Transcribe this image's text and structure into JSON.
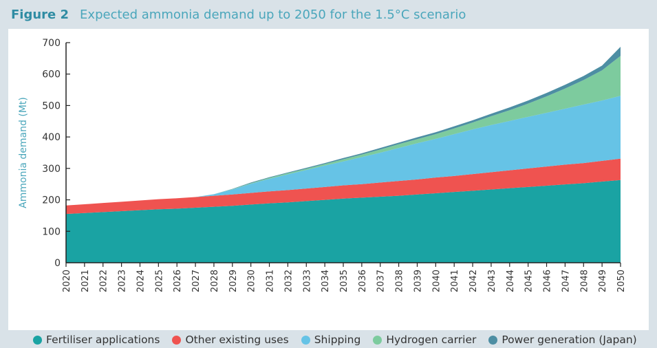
{
  "header": {
    "figure_label": "Figure 2",
    "title": "Expected ammonia demand up to 2050 for the 1.5°C scenario"
  },
  "colors": {
    "background": "#d9e2e8",
    "fertiliser": "#1aa3a3",
    "other": "#ef5350",
    "shipping": "#66c3e6",
    "hydrogen": "#7dcb9e",
    "power": "#4d8ea3",
    "axis_label": "#4aa6bb"
  },
  "chart_data": {
    "type": "area",
    "stacked": true,
    "ylabel": "Ammonia demand (Mt)",
    "ylim": [
      0,
      700
    ],
    "yticks": [
      0,
      100,
      200,
      300,
      400,
      500,
      600,
      700
    ],
    "x": [
      2020,
      2021,
      2022,
      2023,
      2024,
      2025,
      2026,
      2027,
      2028,
      2029,
      2030,
      2031,
      2032,
      2033,
      2034,
      2035,
      2036,
      2037,
      2038,
      2039,
      2040,
      2041,
      2042,
      2043,
      2044,
      2045,
      2046,
      2047,
      2048,
      2049,
      2050
    ],
    "x_tick_labels": [
      "2020",
      "2021",
      "2022",
      "2023",
      "2024",
      "2025",
      "2026",
      "2027",
      "2028",
      "2029",
      "2030",
      "2031",
      "2032",
      "2033",
      "2034",
      "2035",
      "2036",
      "2037",
      "2038",
      "2039",
      "2040",
      "2041",
      "2042",
      "2043",
      "2044",
      "2045",
      "2046",
      "2047",
      "2048",
      "2049",
      "2050"
    ],
    "series": [
      {
        "name": "Fertiliser applications",
        "color": "#1aa3a3",
        "values": [
          155,
          158,
          161,
          164,
          167,
          170,
          172,
          175,
          178,
          181,
          185,
          189,
          192,
          196,
          200,
          204,
          207,
          210,
          213,
          217,
          221,
          225,
          229,
          233,
          237,
          241,
          245,
          249,
          253,
          258,
          263
        ]
      },
      {
        "name": "Other existing uses",
        "color": "#ef5350",
        "values": [
          27,
          28,
          29,
          30,
          31,
          32,
          33,
          34,
          35,
          36,
          37,
          38,
          39,
          40,
          41,
          42,
          43,
          45,
          47,
          48,
          50,
          51,
          53,
          55,
          57,
          59,
          61,
          63,
          64,
          66,
          68
        ]
      },
      {
        "name": "Shipping",
        "color": "#66c3e6",
        "values": [
          0,
          0,
          0,
          0,
          0,
          0,
          0,
          0,
          5,
          16,
          29,
          40,
          50,
          59,
          68,
          76,
          86,
          95,
          105,
          115,
          123,
          133,
          142,
          150,
          157,
          164,
          171,
          178,
          186,
          192,
          200
        ]
      },
      {
        "name": "Hydrogen carrier",
        "color": "#7dcb9e",
        "values": [
          0,
          0,
          0,
          0,
          0,
          0,
          0,
          0,
          0,
          1,
          2,
          3,
          4,
          4,
          5,
          7,
          8,
          10,
          12,
          13,
          15,
          18,
          22,
          28,
          34,
          42,
          52,
          64,
          78,
          96,
          127
        ]
      },
      {
        "name": "Power generation (Japan)",
        "color": "#4d8ea3",
        "values": [
          0,
          0,
          0,
          0,
          0,
          0,
          0,
          0,
          0,
          1,
          2,
          2,
          2,
          3,
          3,
          4,
          4,
          5,
          5,
          6,
          6,
          7,
          7,
          8,
          9,
          10,
          11,
          12,
          13,
          15,
          29
        ]
      }
    ]
  },
  "legend": {
    "items": [
      {
        "label": "Fertiliser applications",
        "color": "#1aa3a3"
      },
      {
        "label": "Other existing uses",
        "color": "#ef5350"
      },
      {
        "label": "Shipping",
        "color": "#66c3e6"
      },
      {
        "label": "Hydrogen carrier",
        "color": "#7dcb9e"
      },
      {
        "label": "Power generation (Japan)",
        "color": "#4d8ea3"
      }
    ]
  }
}
